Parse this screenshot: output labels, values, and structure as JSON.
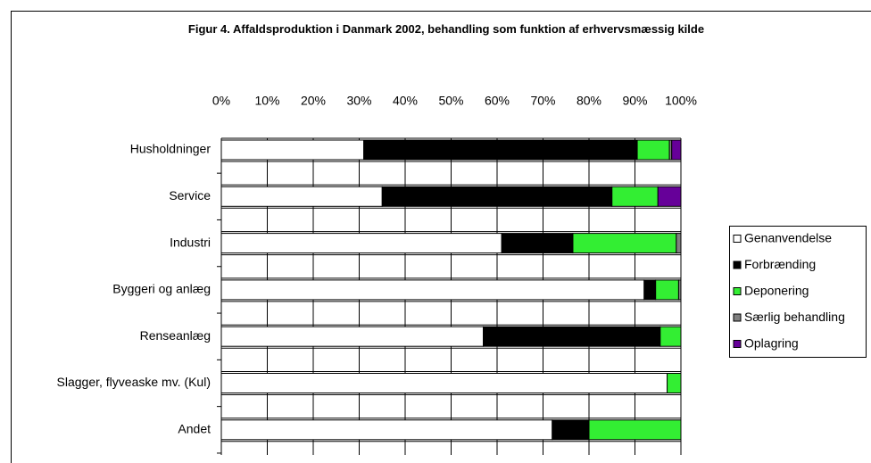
{
  "chart_data": {
    "type": "stacked-bar-horizontal",
    "title": "Figur 4. Affaldsproduktion i Danmark 2002, behandling som funktion af erhvervsmæssig kilde",
    "categories": [
      "Husholdninger",
      "Service",
      "Industri",
      "Byggeri og anlæg",
      "Renseanlæg",
      "Slagger, flyveaske mv. (Kul)",
      "Andet"
    ],
    "series": [
      {
        "name": "Genanvendelse",
        "color": "#ffffff",
        "values": [
          31,
          35,
          61,
          92,
          57,
          97,
          72
        ]
      },
      {
        "name": "Forbrænding",
        "color": "#000000",
        "values": [
          59.5,
          50,
          15.5,
          2.5,
          38.5,
          0,
          8
        ]
      },
      {
        "name": "Deponering",
        "color": "#33ee33",
        "values": [
          7,
          10,
          22.5,
          5,
          4.5,
          3,
          20
        ]
      },
      {
        "name": "Særlig behandling",
        "color": "#808080",
        "values": [
          0.5,
          0,
          1,
          0.5,
          0,
          0,
          0
        ]
      },
      {
        "name": "Oplagring",
        "color": "#660099",
        "values": [
          2,
          5,
          0,
          0,
          0,
          0,
          0
        ]
      }
    ],
    "xlim": [
      0,
      100
    ],
    "xticks": [
      {
        "value": 0,
        "label": "0%"
      },
      {
        "value": 10,
        "label": "10%"
      },
      {
        "value": 20,
        "label": "20%"
      },
      {
        "value": 30,
        "label": "30%"
      },
      {
        "value": 40,
        "label": "40%"
      },
      {
        "value": 50,
        "label": "50%"
      },
      {
        "value": 60,
        "label": "60%"
      },
      {
        "value": 70,
        "label": "70%"
      },
      {
        "value": 80,
        "label": "80%"
      },
      {
        "value": 90,
        "label": "90%"
      },
      {
        "value": 100,
        "label": "100%"
      }
    ],
    "grid": true,
    "legend": "right"
  }
}
